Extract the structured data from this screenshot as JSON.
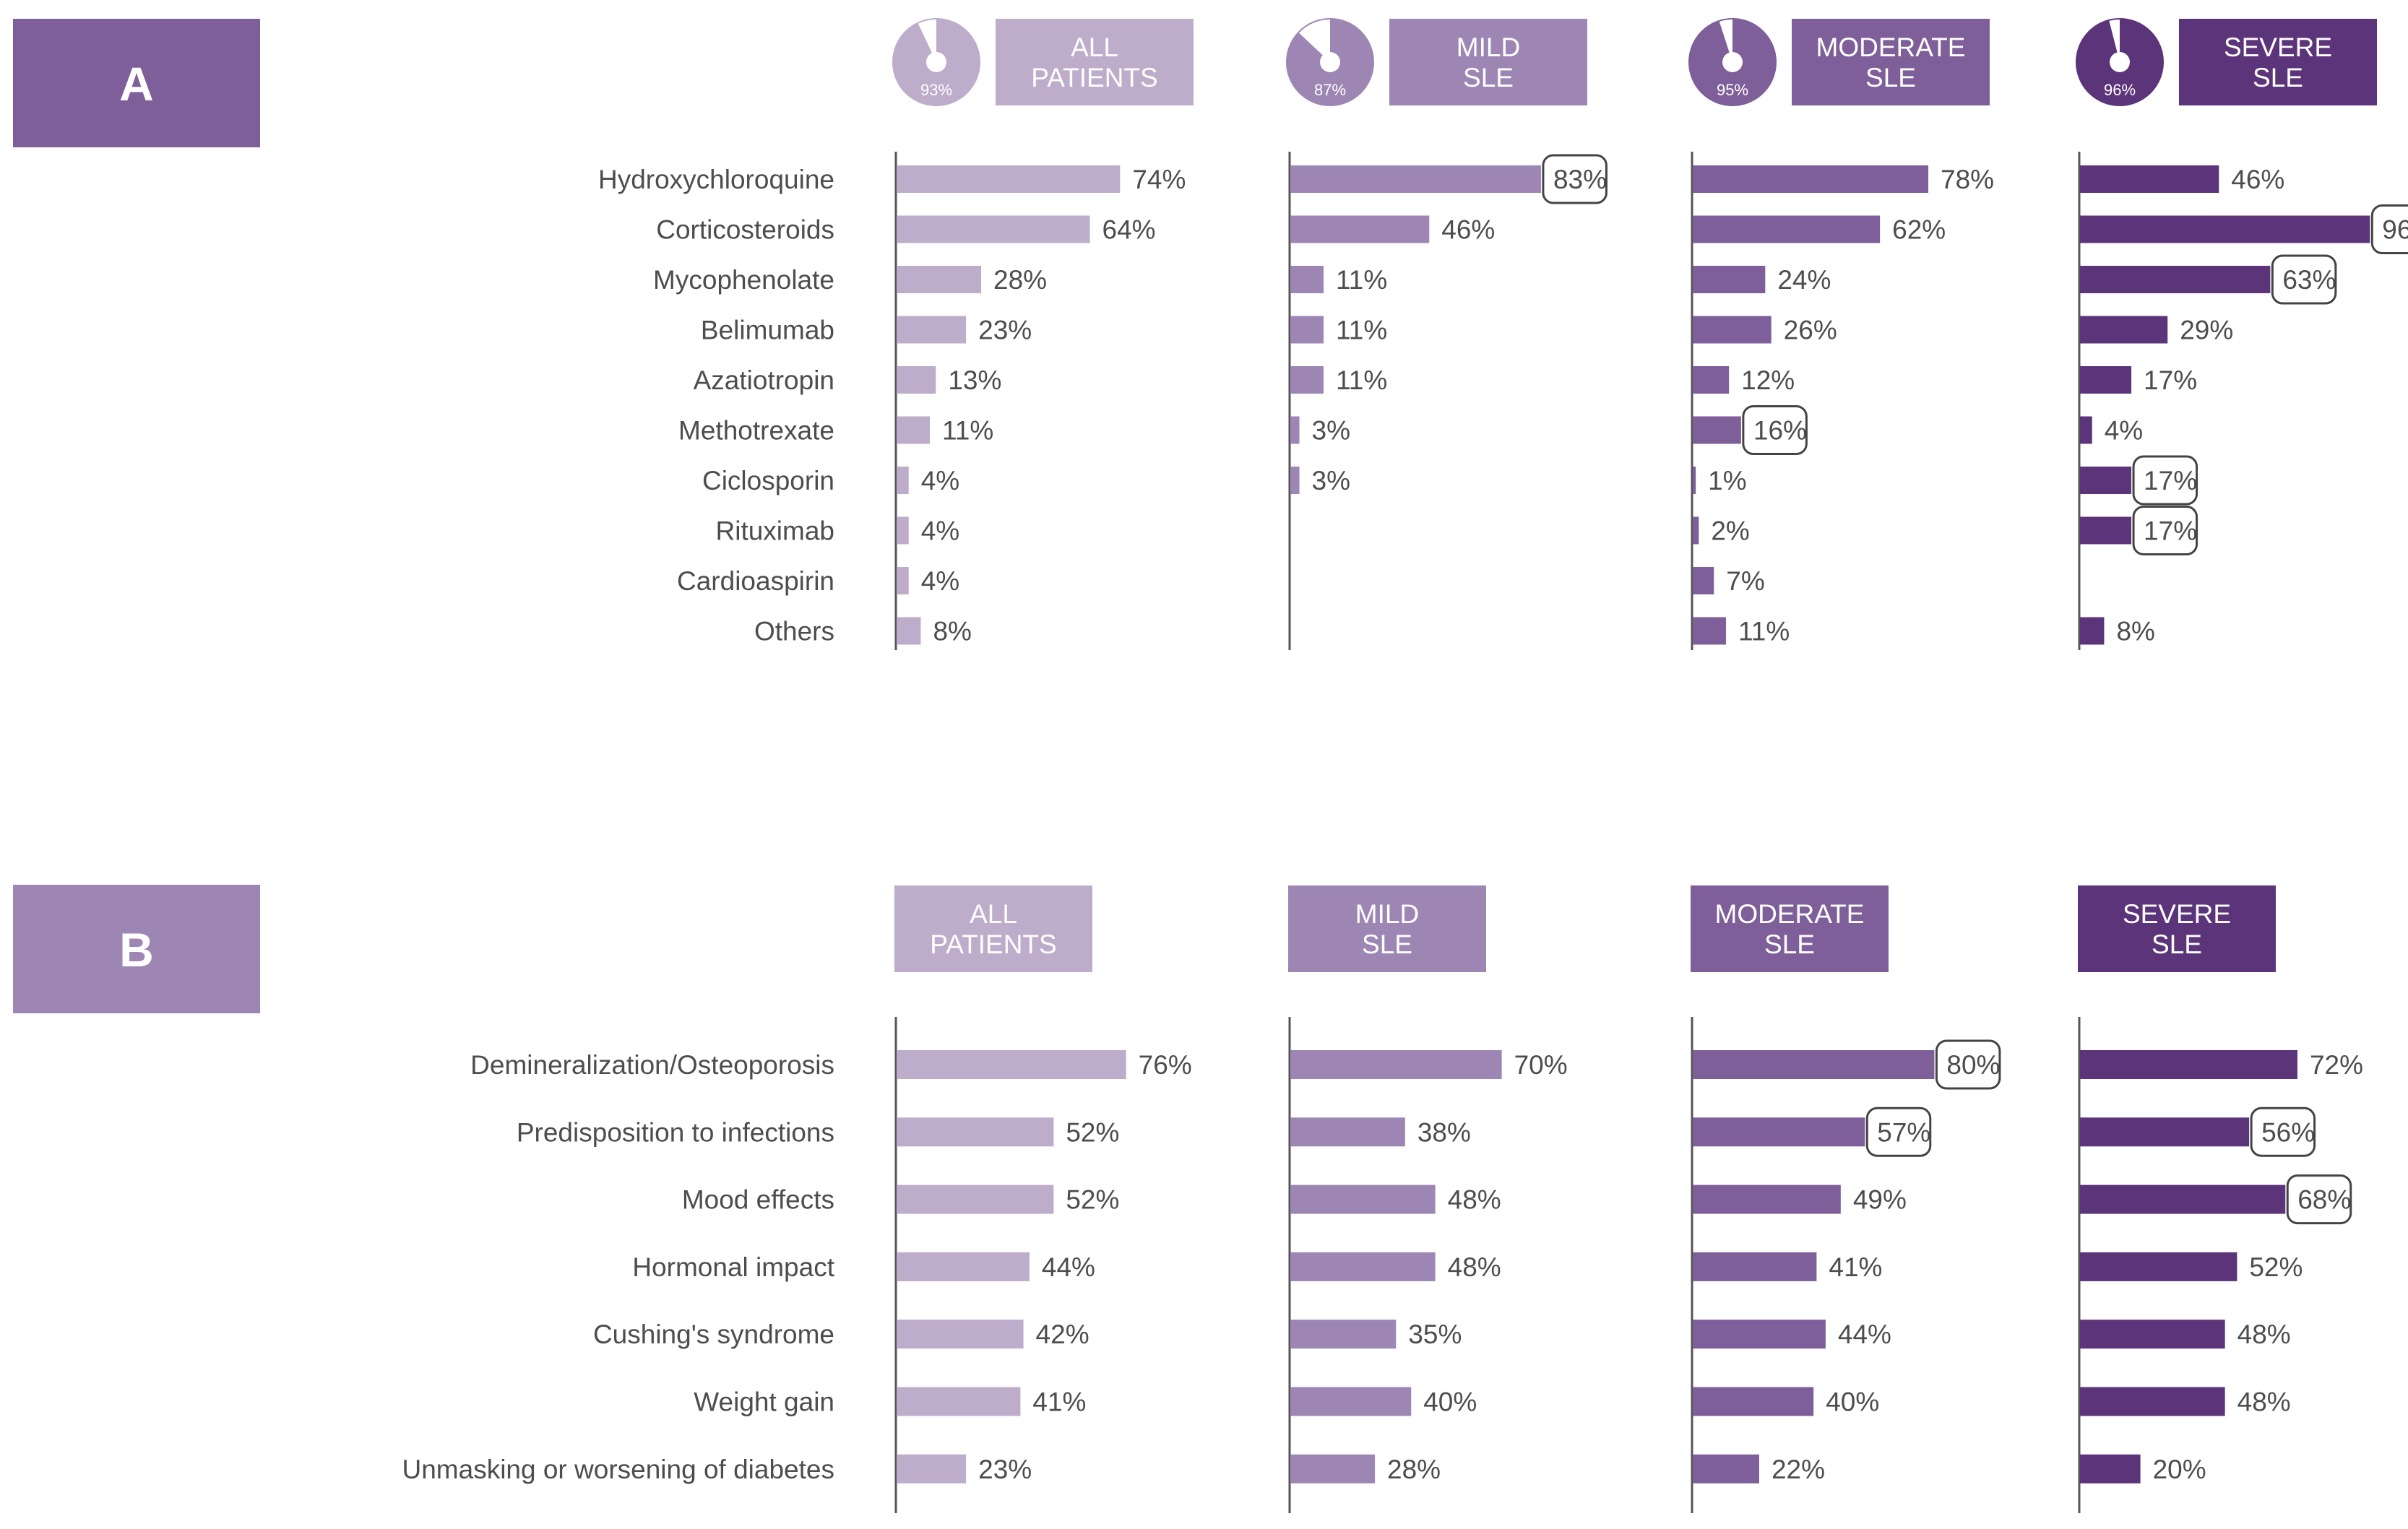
{
  "panels": {
    "A": {
      "letter": "A",
      "letter_color": "#7e5f99",
      "groups": [
        {
          "label_line1": "ALL",
          "label_line2": "PATIENTS",
          "color": "#bdacca",
          "pie_value": 93,
          "pie_label": "93%"
        },
        {
          "label_line1": "MILD",
          "label_line2": "SLE",
          "color": "#9d86b4",
          "pie_value": 87,
          "pie_label": "87%"
        },
        {
          "label_line1": "MODERATE",
          "label_line2": "SLE",
          "color": "#7e5f99",
          "pie_value": 95,
          "pie_label": "95%"
        },
        {
          "label_line1": "SEVERE",
          "label_line2": "SLE",
          "color": "#5b3479",
          "pie_value": 96,
          "pie_label": "96%"
        }
      ]
    },
    "B": {
      "letter": "B",
      "letter_color": "#9d86b4",
      "groups": [
        {
          "label_line1": "ALL",
          "label_line2": "PATIENTS",
          "color": "#bdacca"
        },
        {
          "label_line1": "MILD",
          "label_line2": "SLE",
          "color": "#9d86b4"
        },
        {
          "label_line1": "MODERATE",
          "label_line2": "SLE",
          "color": "#7e5f99"
        },
        {
          "label_line1": "SEVERE",
          "label_line2": "SLE",
          "color": "#5b3479"
        }
      ]
    }
  },
  "chart_data": [
    {
      "type": "bar",
      "orientation": "horizontal",
      "panel": "A",
      "categories": [
        "Hydroxychloroquine",
        "Corticosteroids",
        "Mycophenolate",
        "Belimumab",
        "Azatiotropin",
        "Methotrexate",
        "Ciclosporin",
        "Rituximab",
        "Cardioaspirin",
        "Others"
      ],
      "series": [
        {
          "name": "ALL PATIENTS",
          "values": [
            74,
            64,
            28,
            23,
            13,
            11,
            4,
            4,
            4,
            8
          ],
          "highlighted": []
        },
        {
          "name": "MILD SLE",
          "values": [
            83,
            46,
            11,
            11,
            11,
            3,
            3,
            null,
            null,
            null
          ],
          "highlighted": [
            0
          ]
        },
        {
          "name": "MODERATE SLE",
          "values": [
            78,
            62,
            24,
            26,
            12,
            16,
            1,
            2,
            7,
            11
          ],
          "highlighted": [
            5
          ]
        },
        {
          "name": "SEVERE SLE",
          "values": [
            46,
            96,
            63,
            29,
            17,
            4,
            17,
            17,
            null,
            8
          ],
          "highlighted": [
            1,
            2,
            6,
            7
          ]
        }
      ],
      "value_suffix": "%",
      "xlim": [
        0,
        100
      ]
    },
    {
      "type": "bar",
      "orientation": "horizontal",
      "panel": "B",
      "categories": [
        "Demineralization/Osteoporosis",
        "Predisposition to infections",
        "Mood effects",
        "Hormonal impact",
        "Cushing's syndrome",
        "Weight gain",
        "Unmasking or worsening of diabetes"
      ],
      "series": [
        {
          "name": "ALL PATIENTS",
          "values": [
            76,
            52,
            52,
            44,
            42,
            41,
            23
          ],
          "highlighted": []
        },
        {
          "name": "MILD SLE",
          "values": [
            70,
            38,
            48,
            48,
            35,
            40,
            28
          ],
          "highlighted": []
        },
        {
          "name": "MODERATE SLE",
          "values": [
            80,
            57,
            49,
            41,
            44,
            40,
            22
          ],
          "highlighted": [
            0,
            1
          ]
        },
        {
          "name": "SEVERE SLE",
          "values": [
            72,
            56,
            68,
            52,
            48,
            48,
            20
          ],
          "highlighted": [
            1,
            2
          ]
        }
      ],
      "value_suffix": "%",
      "xlim": [
        0,
        100
      ]
    }
  ]
}
